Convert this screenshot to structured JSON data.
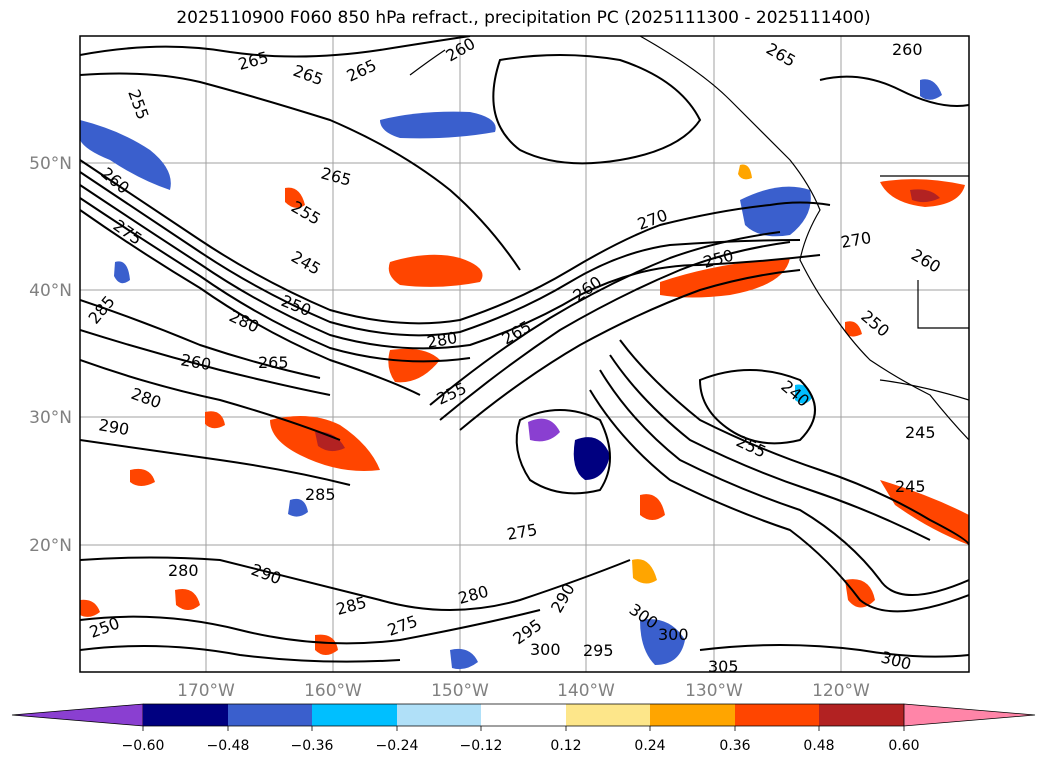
{
  "title": "2025110900 F060 850 hPa refract., precipitation PC (2025111300 - 2025111400)",
  "colors": {
    "land_line": "#000000",
    "grid": "#a0a0a0",
    "contour": "#000000",
    "neg_purple": "#8a3fd1",
    "neg_navy": "#000080",
    "neg_blue": "#3a5fcd",
    "neg_cyan": "#00bfff",
    "neg_lightblue": "#b0e0f8",
    "neutral": "#ffffff",
    "pos_yellow": "#fde68a",
    "pos_orange": "#ffa500",
    "pos_redorange": "#ff4500",
    "pos_firebrick": "#b22222",
    "pos_pink": "#ff85a8"
  },
  "axes": {
    "lat_labels": [
      "50°N",
      "40°N",
      "30°N",
      "20°N"
    ],
    "lon_labels": [
      "170°W",
      "160°W",
      "150°W",
      "140°W",
      "130°W",
      "120°W"
    ]
  },
  "colorbar": {
    "ticks": [
      "−0.60",
      "−0.48",
      "−0.36",
      "−0.24",
      "−0.12",
      "0.12",
      "0.24",
      "0.36",
      "0.48",
      "0.60"
    ],
    "bins": [
      "#8a3fd1",
      "#000080",
      "#3a5fcd",
      "#00bfff",
      "#b0e0f8",
      "#ffffff",
      "#fde68a",
      "#ffa500",
      "#ff4500",
      "#b22222",
      "#ff85a8"
    ]
  },
  "contour_labels": [
    "255",
    "265",
    "265",
    "265",
    "260",
    "260",
    "265",
    "260",
    "265",
    "255",
    "270",
    "275",
    "245",
    "250",
    "260",
    "250",
    "285",
    "280",
    "280",
    "265",
    "260",
    "265",
    "250",
    "280",
    "255",
    "290",
    "285",
    "255",
    "245",
    "275",
    "280",
    "290",
    "285",
    "275",
    "280",
    "290",
    "295",
    "300",
    "300",
    "295",
    "300",
    "305",
    "300",
    "245",
    "240",
    "250",
    "270",
    "260"
  ]
}
